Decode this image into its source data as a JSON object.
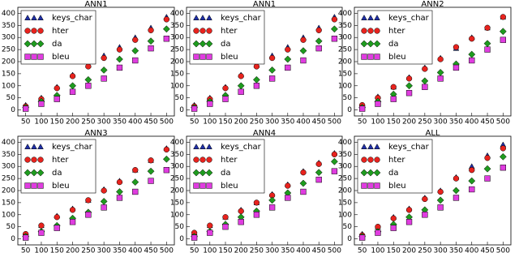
{
  "chart_data": [
    {
      "type": "scatter",
      "title": "ANN1",
      "x": [
        50,
        100,
        150,
        200,
        250,
        300,
        350,
        400,
        450,
        500
      ],
      "xlim": [
        25,
        525
      ],
      "xticks": [
        50,
        100,
        150,
        200,
        250,
        300,
        350,
        400,
        450,
        500
      ],
      "ylim": [
        -25,
        425
      ],
      "yticks": [
        0,
        50,
        100,
        150,
        200,
        250,
        300,
        350,
        400
      ],
      "legend": "upper left",
      "grid": false,
      "series": [
        {
          "name": "keys_char",
          "color": "#1f2fa8",
          "marker": "^",
          "values": [
            20,
            50,
            95,
            145,
            185,
            225,
            260,
            300,
            340,
            385
          ]
        },
        {
          "name": "hter",
          "color": "#e8231e",
          "marker": "o",
          "values": [
            15,
            45,
            90,
            140,
            180,
            215,
            250,
            290,
            330,
            375
          ]
        },
        {
          "name": "da",
          "color": "#1e9b1e",
          "marker": "D",
          "values": [
            10,
            35,
            60,
            100,
            125,
            165,
            210,
            245,
            285,
            335
          ]
        },
        {
          "name": "bleu",
          "color": "#e03ce0",
          "marker": "s",
          "values": [
            5,
            25,
            45,
            75,
            100,
            130,
            175,
            205,
            255,
            295
          ]
        }
      ]
    },
    {
      "type": "scatter",
      "title": "ANN1",
      "x": [
        50,
        100,
        150,
        200,
        250,
        300,
        350,
        400,
        450,
        500
      ],
      "xlim": [
        25,
        525
      ],
      "xticks": [
        50,
        100,
        150,
        200,
        250,
        300,
        350,
        400,
        450,
        500
      ],
      "ylim": [
        -25,
        425
      ],
      "yticks": [
        0,
        50,
        100,
        150,
        200,
        250,
        300,
        350,
        400
      ],
      "legend": "upper left",
      "grid": false,
      "series": [
        {
          "name": "keys_char",
          "color": "#1f2fa8",
          "marker": "^",
          "values": [
            20,
            50,
            95,
            145,
            185,
            225,
            260,
            300,
            340,
            385
          ]
        },
        {
          "name": "hter",
          "color": "#e8231e",
          "marker": "o",
          "values": [
            15,
            45,
            90,
            140,
            180,
            215,
            250,
            290,
            330,
            375
          ]
        },
        {
          "name": "da",
          "color": "#1e9b1e",
          "marker": "D",
          "values": [
            10,
            35,
            60,
            100,
            125,
            165,
            210,
            245,
            285,
            335
          ]
        },
        {
          "name": "bleu",
          "color": "#e03ce0",
          "marker": "s",
          "values": [
            5,
            25,
            45,
            75,
            100,
            130,
            175,
            205,
            255,
            295
          ]
        }
      ]
    },
    {
      "type": "scatter",
      "title": "ANN2",
      "x": [
        50,
        100,
        150,
        200,
        250,
        300,
        350,
        400,
        450,
        500
      ],
      "xlim": [
        25,
        525
      ],
      "xticks": [
        50,
        100,
        150,
        200,
        250,
        300,
        350,
        400,
        450,
        500
      ],
      "ylim": [
        -25,
        425
      ],
      "yticks": [
        0,
        50,
        100,
        150,
        200,
        250,
        300,
        350,
        400
      ],
      "legend": "upper left",
      "grid": false,
      "series": [
        {
          "name": "keys_char",
          "color": "#1f2fa8",
          "marker": "^",
          "values": [
            20,
            55,
            95,
            135,
            175,
            215,
            255,
            300,
            340,
            385
          ]
        },
        {
          "name": "hter",
          "color": "#e8231e",
          "marker": "o",
          "values": [
            20,
            50,
            95,
            130,
            170,
            210,
            260,
            295,
            340,
            385
          ]
        },
        {
          "name": "da",
          "color": "#1e9b1e",
          "marker": "D",
          "values": [
            10,
            35,
            65,
            100,
            120,
            155,
            190,
            230,
            275,
            325
          ]
        },
        {
          "name": "bleu",
          "color": "#e03ce0",
          "marker": "s",
          "values": [
            5,
            25,
            45,
            70,
            95,
            130,
            175,
            205,
            250,
            290
          ]
        }
      ]
    },
    {
      "type": "scatter",
      "title": "ANN3",
      "x": [
        50,
        100,
        150,
        200,
        250,
        300,
        350,
        400,
        450,
        500
      ],
      "xlim": [
        25,
        525
      ],
      "xticks": [
        50,
        100,
        150,
        200,
        250,
        300,
        350,
        400,
        450,
        500
      ],
      "ylim": [
        -25,
        425
      ],
      "yticks": [
        0,
        50,
        100,
        150,
        200,
        250,
        300,
        350,
        400
      ],
      "legend": "upper left",
      "grid": false,
      "series": [
        {
          "name": "keys_char",
          "color": "#1f2fa8",
          "marker": "^",
          "values": [
            20,
            55,
            95,
            125,
            160,
            205,
            240,
            285,
            325,
            375
          ]
        },
        {
          "name": "hter",
          "color": "#e8231e",
          "marker": "o",
          "values": [
            20,
            55,
            90,
            120,
            160,
            200,
            235,
            285,
            325,
            370
          ]
        },
        {
          "name": "da",
          "color": "#1e9b1e",
          "marker": "D",
          "values": [
            10,
            30,
            55,
            85,
            110,
            155,
            195,
            235,
            280,
            330
          ]
        },
        {
          "name": "bleu",
          "color": "#e03ce0",
          "marker": "s",
          "values": [
            5,
            25,
            45,
            70,
            100,
            130,
            170,
            195,
            240,
            285
          ]
        }
      ]
    },
    {
      "type": "scatter",
      "title": "ANN4",
      "x": [
        50,
        100,
        150,
        200,
        250,
        300,
        350,
        400,
        450,
        500
      ],
      "xlim": [
        25,
        525
      ],
      "xticks": [
        50,
        100,
        150,
        200,
        250,
        300,
        350,
        400,
        450,
        500
      ],
      "ylim": [
        -25,
        425
      ],
      "yticks": [
        0,
        50,
        100,
        150,
        200,
        250,
        300,
        350,
        400
      ],
      "legend": "upper left",
      "grid": false,
      "series": [
        {
          "name": "keys_char",
          "color": "#1f2fa8",
          "marker": "^",
          "values": [
            25,
            55,
            90,
            120,
            150,
            185,
            225,
            280,
            315,
            355
          ]
        },
        {
          "name": "hter",
          "color": "#e8231e",
          "marker": "o",
          "values": [
            25,
            55,
            90,
            115,
            150,
            180,
            220,
            275,
            310,
            350
          ]
        },
        {
          "name": "da",
          "color": "#1e9b1e",
          "marker": "D",
          "values": [
            10,
            30,
            60,
            90,
            115,
            160,
            190,
            230,
            275,
            320
          ]
        },
        {
          "name": "bleu",
          "color": "#e03ce0",
          "marker": "s",
          "values": [
            5,
            25,
            50,
            70,
            100,
            130,
            170,
            195,
            245,
            280
          ]
        }
      ]
    },
    {
      "type": "scatter",
      "title": "ALL",
      "x": [
        50,
        100,
        150,
        200,
        250,
        300,
        350,
        400,
        450,
        500
      ],
      "xlim": [
        25,
        525
      ],
      "xticks": [
        50,
        100,
        150,
        200,
        250,
        300,
        350,
        400,
        450,
        500
      ],
      "ylim": [
        -25,
        425
      ],
      "yticks": [
        0,
        50,
        100,
        150,
        200,
        250,
        300,
        350,
        400
      ],
      "legend": "upper left",
      "grid": false,
      "series": [
        {
          "name": "keys_char",
          "color": "#1f2fa8",
          "marker": "^",
          "values": [
            20,
            50,
            90,
            125,
            170,
            200,
            255,
            300,
            345,
            390
          ]
        },
        {
          "name": "hter",
          "color": "#e8231e",
          "marker": "o",
          "values": [
            15,
            50,
            85,
            120,
            165,
            195,
            250,
            285,
            335,
            375
          ]
        },
        {
          "name": "da",
          "color": "#1e9b1e",
          "marker": "D",
          "values": [
            10,
            30,
            60,
            90,
            120,
            160,
            200,
            240,
            290,
            340
          ]
        },
        {
          "name": "bleu",
          "color": "#e03ce0",
          "marker": "s",
          "values": [
            5,
            25,
            45,
            70,
            100,
            130,
            170,
            205,
            250,
            295
          ]
        }
      ]
    }
  ]
}
